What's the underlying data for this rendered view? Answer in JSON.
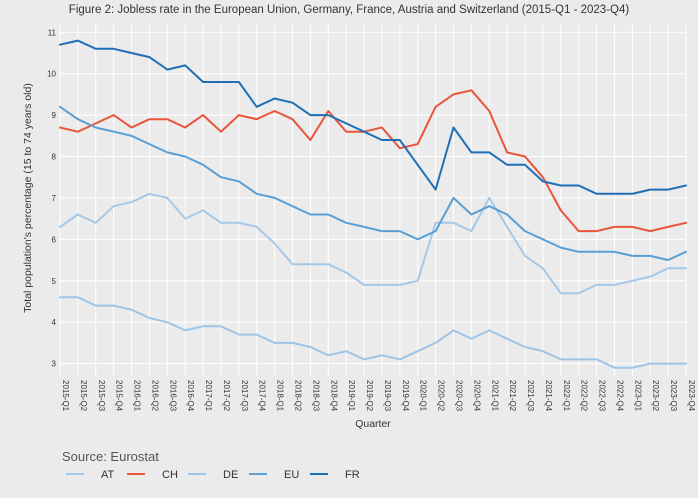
{
  "chart_data": {
    "type": "line",
    "title": "Figure 2: Jobless rate in the European Union, Germany, France, Austria and Switzerland  (2015-Q1 - 2023-Q4)",
    "xlabel": "Quarter",
    "ylabel": "Total population's percentage (15 to 74 years old)",
    "source": "Source: Eurostat",
    "ylim": [
      2.7,
      11.2
    ],
    "yticks": [
      3,
      4,
      5,
      6,
      7,
      8,
      9,
      10,
      11
    ],
    "grid": true,
    "legend_position": "bottom",
    "categories": [
      "2015-Q1",
      "2015-Q2",
      "2015-Q3",
      "2015-Q4",
      "2016-Q1",
      "2016-Q2",
      "2016-Q3",
      "2016-Q4",
      "2017-Q1",
      "2017-Q2",
      "2017-Q3",
      "2017-Q4",
      "2018-Q1",
      "2018-Q2",
      "2018-Q3",
      "2018-Q4",
      "2019-Q1",
      "2019-Q2",
      "2019-Q3",
      "2019-Q4",
      "2020-Q1",
      "2020-Q2",
      "2020-Q3",
      "2020-Q4",
      "2021-Q1",
      "2021-Q2",
      "2021-Q3",
      "2021-Q4",
      "2022-Q1",
      "2022-Q2",
      "2022-Q3",
      "2022-Q4",
      "2023-Q1",
      "2023-Q2",
      "2023-Q3",
      "2023-Q4"
    ],
    "series": [
      {
        "name": "AT",
        "color": "#a6c8e8",
        "values": [
          6.3,
          6.6,
          6.4,
          6.8,
          6.9,
          7.1,
          7.0,
          6.5,
          6.7,
          6.4,
          6.4,
          6.3,
          5.9,
          5.4,
          5.4,
          5.4,
          5.2,
          4.9,
          4.9,
          4.9,
          5.0,
          6.4,
          6.4,
          6.2,
          7.0,
          6.3,
          5.6,
          5.3,
          4.7,
          4.7,
          4.9,
          4.9,
          5.0,
          5.1,
          5.3,
          5.3
        ]
      },
      {
        "name": "CH",
        "color": "#e8553a",
        "values": [
          8.7,
          8.6,
          8.8,
          9.0,
          8.7,
          8.9,
          8.9,
          8.7,
          9.0,
          8.6,
          9.0,
          8.9,
          9.1,
          8.9,
          8.4,
          9.1,
          8.6,
          8.6,
          8.7,
          8.2,
          8.3,
          9.2,
          9.5,
          9.6,
          9.1,
          8.1,
          8.0,
          7.5,
          6.7,
          6.2,
          6.2,
          6.3,
          6.3,
          6.2,
          6.3,
          6.4
        ]
      },
      {
        "name": "DE",
        "color": "#9ec4e6",
        "values": [
          4.6,
          4.6,
          4.4,
          4.4,
          4.3,
          4.1,
          4.0,
          3.8,
          3.9,
          3.9,
          3.7,
          3.7,
          3.5,
          3.5,
          3.4,
          3.2,
          3.3,
          3.1,
          3.2,
          3.1,
          3.3,
          3.5,
          3.8,
          3.6,
          3.8,
          3.6,
          3.4,
          3.3,
          3.1,
          3.1,
          3.1,
          2.9,
          2.9,
          3.0,
          3.0,
          3.0
        ]
      },
      {
        "name": "EU",
        "color": "#5a9fd4",
        "values": [
          9.2,
          8.9,
          8.7,
          8.6,
          8.5,
          8.3,
          8.1,
          8.0,
          7.8,
          7.5,
          7.4,
          7.1,
          7.0,
          6.8,
          6.6,
          6.6,
          6.4,
          6.3,
          6.2,
          6.2,
          6.0,
          6.2,
          7.0,
          6.6,
          6.8,
          6.6,
          6.2,
          6.0,
          5.8,
          5.7,
          5.7,
          5.7,
          5.6,
          5.6,
          5.5,
          5.7
        ]
      },
      {
        "name": "FR",
        "color": "#1f6fb5",
        "values": [
          10.7,
          10.8,
          10.6,
          10.6,
          10.5,
          10.4,
          10.1,
          10.2,
          9.8,
          9.8,
          9.8,
          9.2,
          9.4,
          9.3,
          9.0,
          9.0,
          8.8,
          8.6,
          8.4,
          8.4,
          7.8,
          7.2,
          8.7,
          8.1,
          8.1,
          7.8,
          7.8,
          7.4,
          7.3,
          7.3,
          7.1,
          7.1,
          7.1,
          7.2,
          7.2,
          7.3
        ]
      }
    ]
  }
}
